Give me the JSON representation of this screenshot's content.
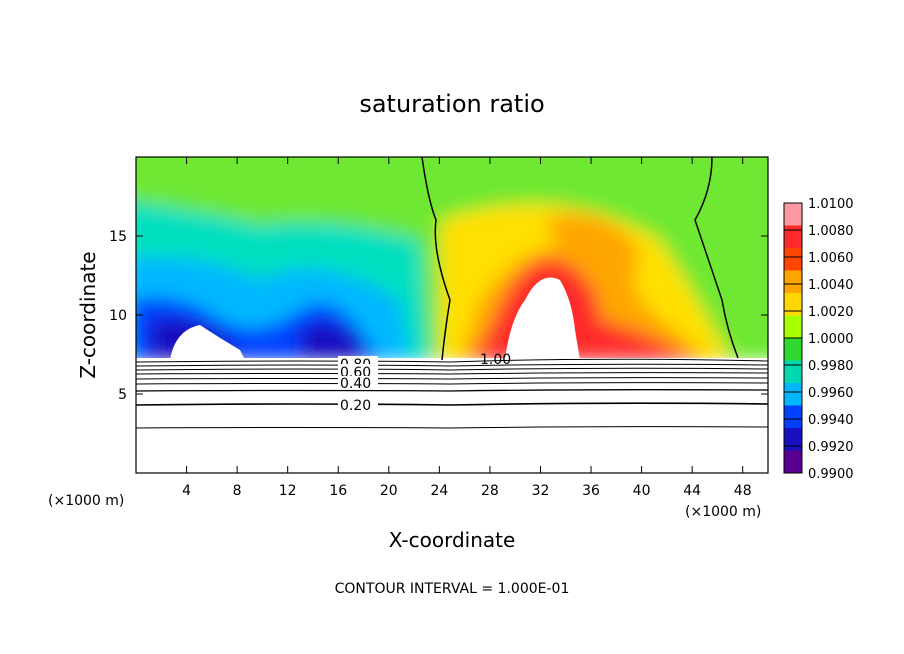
{
  "chart_data": {
    "type": "heatmap",
    "title": "saturation ratio",
    "xlabel": "X-coordinate",
    "ylabel": "Z-coordinate",
    "x_unit": "(×1000 m)",
    "x_unit_right": "(×1000 m)",
    "xlim": [
      0,
      50
    ],
    "ylim": [
      0,
      20
    ],
    "x_ticks": [
      4,
      8,
      12,
      16,
      20,
      24,
      28,
      32,
      36,
      40,
      44,
      48
    ],
    "y_ticks": [
      5,
      10,
      15
    ],
    "colorbar": {
      "levels": [
        "1.0100",
        "1.0080",
        "1.0060",
        "1.0040",
        "1.0020",
        "1.0000",
        "0.9980",
        "0.9960",
        "0.9940",
        "0.9920",
        "0.9900"
      ],
      "colors": [
        "#ff9aa2",
        "#ff2a2a",
        "#ff4500",
        "#ffa500",
        "#ffd800",
        "#a8ff00",
        "#30d930",
        "#00d8b0",
        "#00b8ff",
        "#0040ff",
        "#1810c0",
        "#5a0090"
      ]
    },
    "contour_labels": [
      "0.80",
      "0.60",
      "0.40",
      "0.20",
      "1.00"
    ],
    "contour_interval": "CONTOUR INTERVAL = 1.000E-01"
  }
}
